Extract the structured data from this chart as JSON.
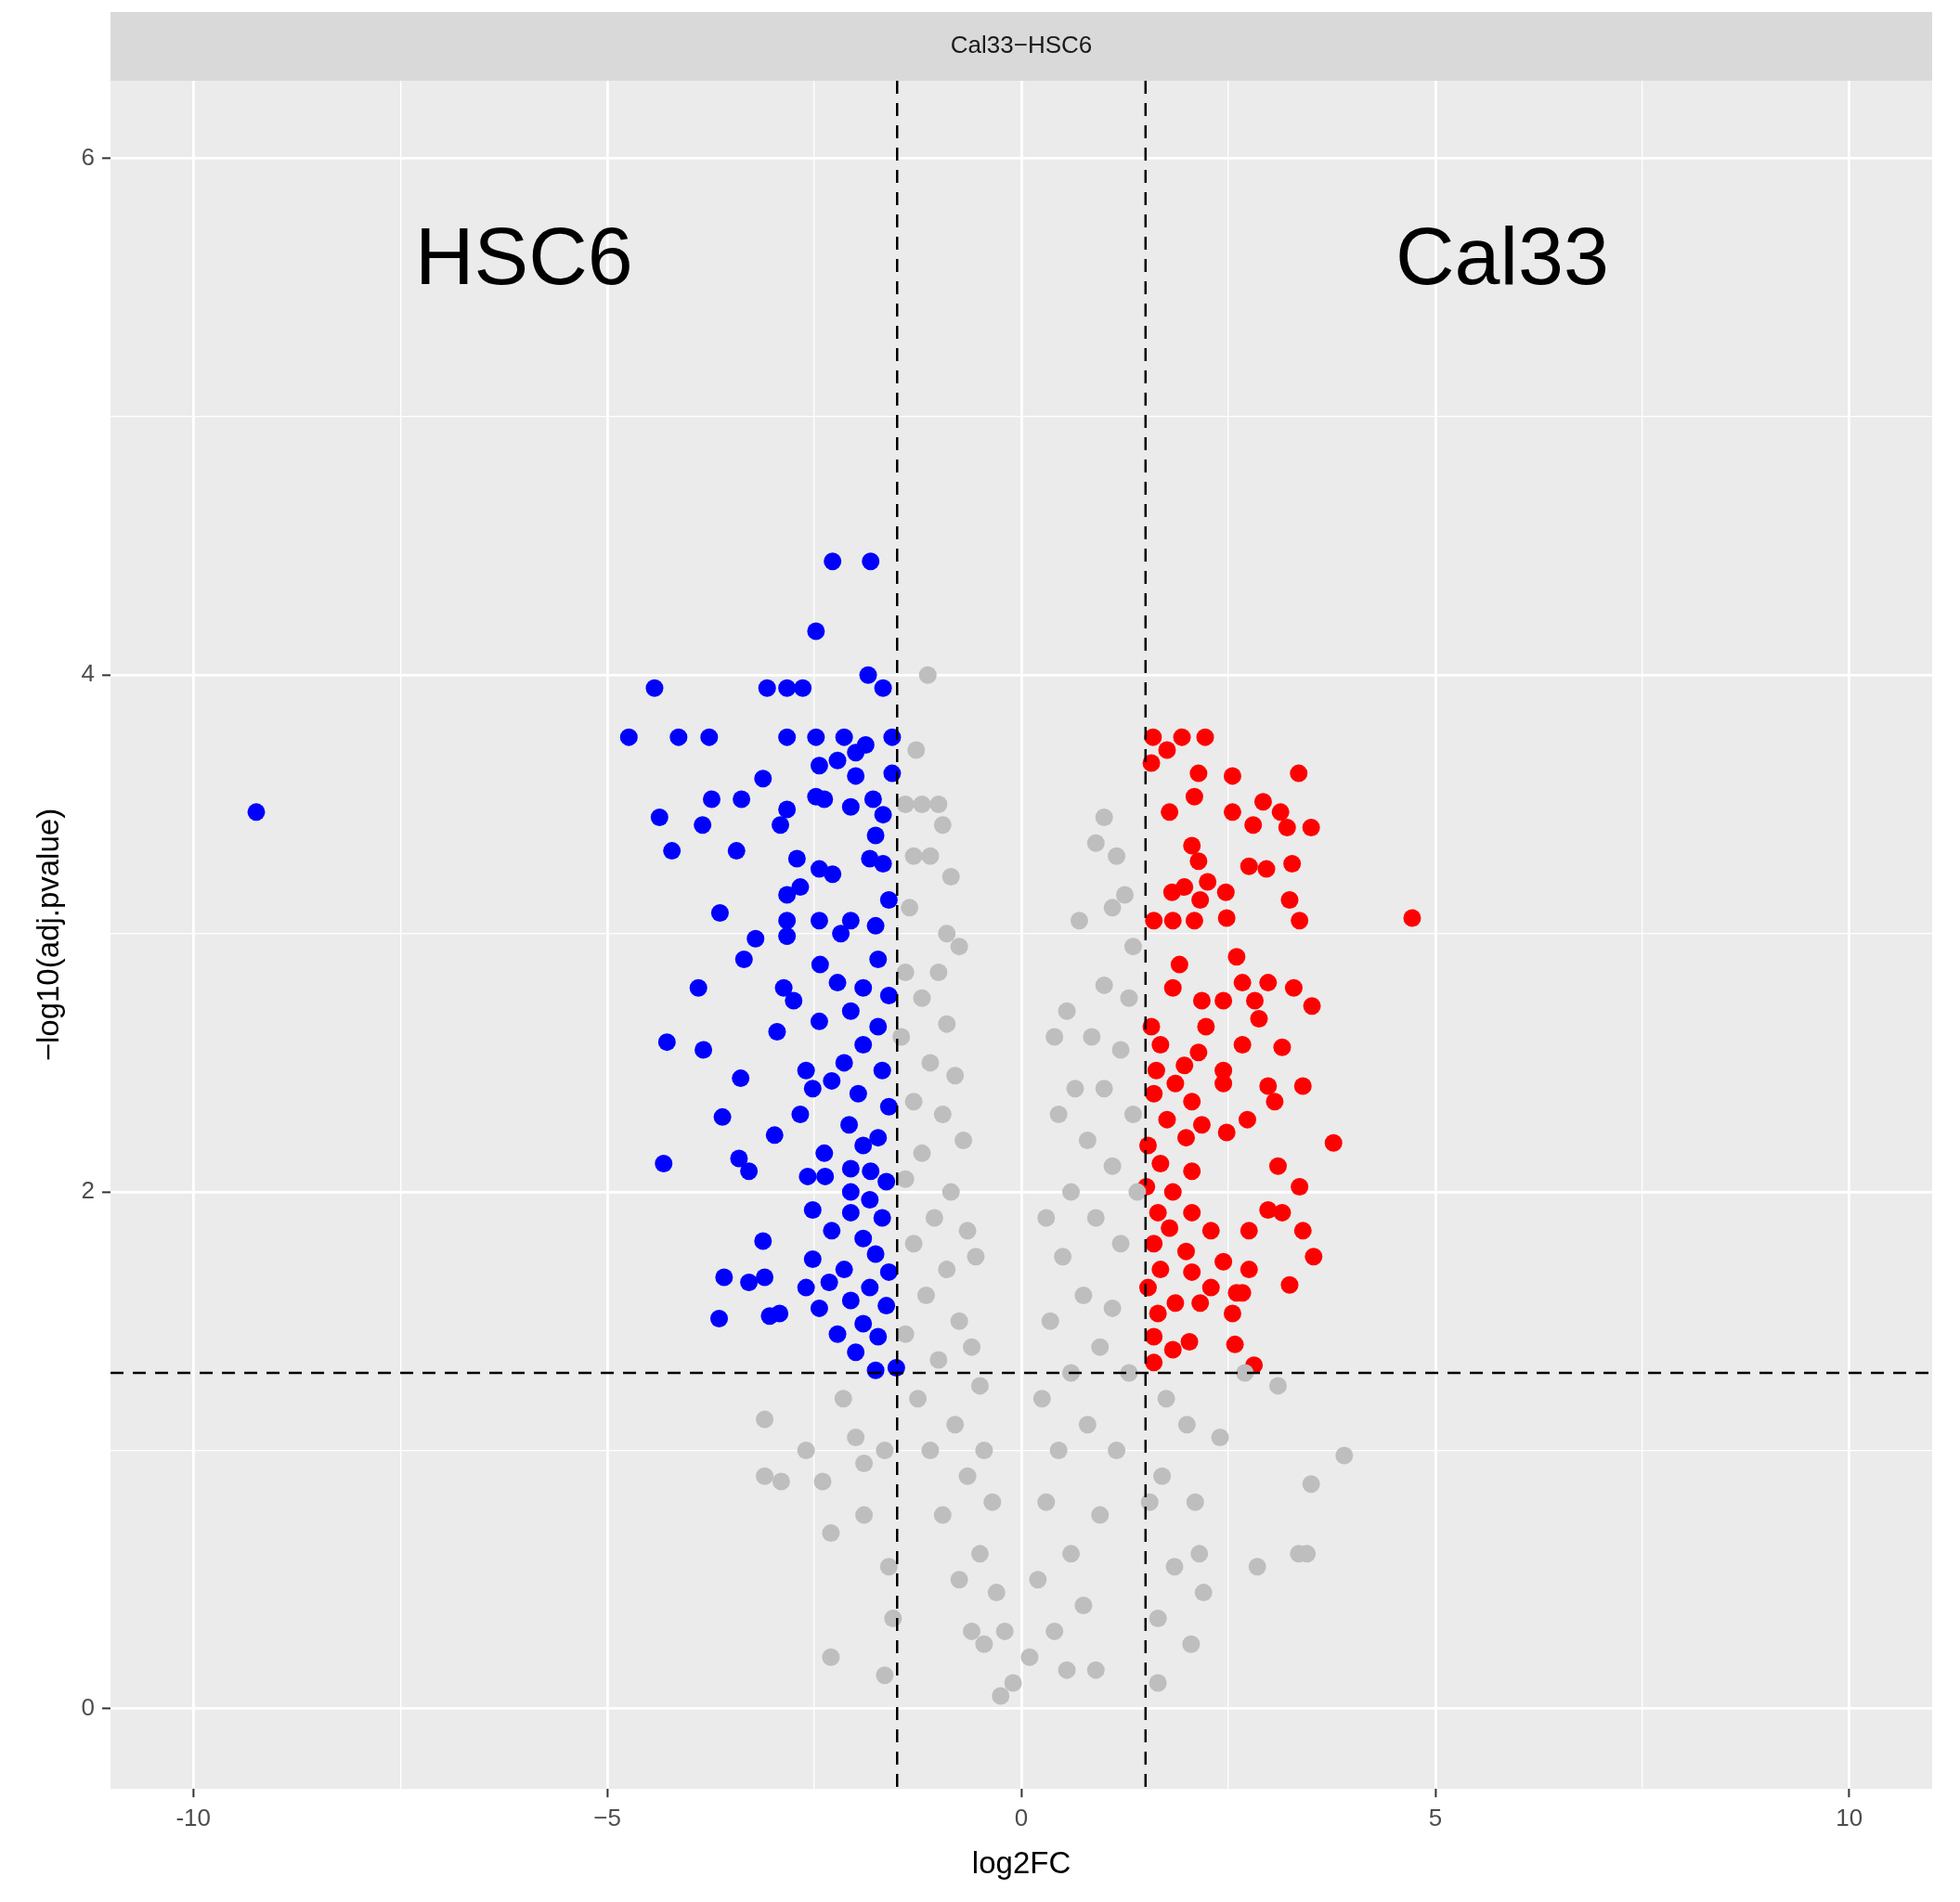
{
  "chart_data": {
    "type": "scatter",
    "title": "Cal33−HSC6",
    "xlabel": "log2FC",
    "ylabel": "−log10(adj.pvalue)",
    "xlim": [
      -11,
      11
    ],
    "ylim": [
      -0.31,
      6.3
    ],
    "xticks": [
      -10,
      {
        "value": -7.5,
        "label": null
      },
      {
        "value": -5,
        "label": "−5"
      },
      {
        "value": -2.5,
        "label": null
      },
      0,
      {
        "value": 2.5,
        "label": null
      },
      5,
      {
        "value": 7.5,
        "label": null
      },
      10
    ],
    "yticks": [
      0,
      {
        "value": 1,
        "label": null
      },
      2,
      {
        "value": 3,
        "label": null
      },
      4,
      {
        "value": 5,
        "label": null
      },
      6
    ],
    "grid": true,
    "legend": false,
    "marker": "circle",
    "ref_lines": [
      {
        "axis": "x",
        "value": -1.5,
        "line_style": "dashed",
        "color": "#000000"
      },
      {
        "axis": "x",
        "value": 1.5,
        "line_style": "dashed",
        "color": "#000000"
      },
      {
        "axis": "y",
        "value": 1.3,
        "line_style": "dashed",
        "color": "#000000"
      }
    ],
    "annotations": [
      "HSC6",
      "Cal33"
    ],
    "series": [
      {
        "color": "#bebebe",
        "x": [
          -1.13,
          -1.27,
          -1.4,
          -1.2,
          -1.0,
          -0.95,
          -1.3,
          -1.1,
          -0.85,
          -1.35,
          -0.9,
          -1.4,
          -1.0,
          -0.75,
          -1.2,
          -0.9,
          -1.45,
          -1.1,
          -0.8,
          -1.3,
          -0.95,
          -0.7,
          -1.2,
          -1.4,
          -0.85,
          -1.05,
          -0.65,
          -1.3,
          -0.9,
          -0.55,
          -1.15,
          -0.75,
          -1.4,
          -0.6,
          -1.0,
          -0.5,
          -1.25,
          -0.8,
          -0.45,
          -1.1,
          -0.65,
          -0.35,
          -0.95,
          -0.5,
          -0.3,
          -0.75,
          -0.2,
          -0.45,
          -0.1,
          -0.25,
          -0.6,
          -3.1,
          -3.1,
          -2.6,
          -2.9,
          -2.4,
          -2.3,
          -2.3,
          -1.65,
          -1.9,
          -1.6,
          -1.65,
          -2.0,
          -2.15,
          -1.55,
          -1.9,
          1.0,
          0.9,
          1.15,
          1.25,
          0.7,
          1.1,
          1.35,
          0.55,
          1.0,
          1.3,
          0.85,
          0.4,
          1.2,
          0.65,
          1.0,
          1.35,
          0.45,
          0.8,
          1.1,
          0.6,
          1.4,
          0.3,
          0.9,
          1.2,
          0.5,
          0.75,
          1.1,
          0.35,
          0.95,
          0.6,
          1.3,
          0.25,
          0.8,
          1.15,
          0.45,
          0.3,
          0.95,
          0.6,
          0.2,
          0.75,
          0.4,
          0.1,
          0.9,
          0.55,
          1.75,
          2.0,
          2.4,
          2.7,
          3.1,
          3.9,
          3.5,
          2.1,
          1.7,
          2.15,
          2.2,
          2.85,
          3.35,
          3.45,
          1.65,
          2.05,
          1.55,
          1.85,
          1.65
        ],
        "values": [
          4.0,
          3.71,
          3.5,
          3.5,
          3.5,
          3.42,
          3.3,
          3.3,
          3.22,
          3.1,
          3.0,
          2.85,
          2.85,
          2.95,
          2.75,
          2.65,
          2.6,
          2.5,
          2.45,
          2.35,
          2.3,
          2.2,
          2.15,
          2.05,
          2.0,
          1.9,
          1.85,
          1.8,
          1.7,
          1.75,
          1.6,
          1.5,
          1.45,
          1.4,
          1.35,
          1.25,
          1.2,
          1.1,
          1.0,
          1.0,
          0.9,
          0.8,
          0.75,
          0.6,
          0.45,
          0.5,
          0.3,
          0.25,
          0.1,
          0.05,
          0.3,
          1.12,
          0.9,
          1.0,
          0.88,
          0.88,
          0.68,
          0.2,
          1.0,
          0.75,
          0.55,
          0.13,
          1.05,
          1.2,
          0.35,
          0.95,
          3.45,
          3.35,
          3.3,
          3.15,
          3.05,
          3.1,
          2.95,
          2.7,
          2.8,
          2.75,
          2.6,
          2.6,
          2.55,
          2.4,
          2.4,
          2.3,
          2.3,
          2.2,
          2.1,
          2.0,
          2.0,
          1.9,
          1.9,
          1.8,
          1.75,
          1.6,
          1.55,
          1.5,
          1.4,
          1.3,
          1.3,
          1.2,
          1.1,
          1.0,
          1.0,
          0.8,
          0.75,
          0.6,
          0.5,
          0.4,
          0.3,
          0.2,
          0.15,
          0.15,
          1.2,
          1.1,
          1.05,
          1.3,
          1.25,
          0.98,
          0.87,
          0.8,
          0.9,
          0.6,
          0.45,
          0.55,
          0.6,
          0.6,
          0.35,
          0.25,
          0.8,
          0.55,
          0.1
        ]
      },
      {
        "color": "#0000ff",
        "x": [
          -9.24,
          -4.74,
          -4.43,
          -4.14,
          -3.77,
          -4.37,
          -4.22,
          -3.85,
          -3.74,
          -3.44,
          -3.38,
          -3.64,
          -3.9,
          -4.28,
          -3.84,
          -3.39,
          -3.61,
          -3.35,
          -3.21,
          -2.98,
          -4.32,
          -3.41,
          -3.29,
          -3.12,
          -3.59,
          -3.29,
          -3.1,
          -3.65,
          -3.04,
          -2.92,
          -3.07,
          -2.83,
          -2.64,
          -3.12,
          -2.83,
          -2.83,
          -2.91,
          -2.71,
          -2.83,
          -2.67,
          -2.83,
          -2.83,
          -2.87,
          -2.75,
          -2.95,
          -2.6,
          -2.52,
          -2.67,
          -2.48,
          -2.28,
          -1.82,
          -1.85,
          -1.67,
          -2.48,
          -2.14,
          -2.0,
          -1.88,
          -1.56,
          -2.44,
          -2.22,
          -2.0,
          -1.56,
          -2.48,
          -2.38,
          -2.06,
          -1.79,
          -1.67,
          -1.76,
          -1.83,
          -1.67,
          -2.44,
          -2.28,
          -1.6,
          -2.44,
          -2.06,
          -2.18,
          -1.76,
          -2.43,
          -1.73,
          -2.22,
          -1.91,
          -1.6,
          -2.44,
          -2.06,
          -1.73,
          -1.91,
          -2.14,
          -1.68,
          -2.29,
          -1.97,
          -1.6,
          -2.08,
          -1.91,
          -1.73,
          -2.38,
          -2.06,
          -1.82,
          -2.58,
          -2.37,
          -1.63,
          -2.06,
          -1.83,
          -2.52,
          -2.06,
          -1.68,
          -2.29,
          -1.91,
          -1.76,
          -2.52,
          -2.14,
          -1.6,
          -2.6,
          -2.32,
          -1.83,
          -2.44,
          -2.06,
          -1.63,
          -1.91,
          -2.22,
          -1.73,
          -2.0,
          -1.76,
          -1.51
        ],
        "values": [
          3.47,
          3.76,
          3.95,
          3.76,
          3.76,
          3.45,
          3.32,
          3.42,
          3.52,
          3.32,
          3.52,
          3.08,
          2.79,
          2.58,
          2.55,
          2.44,
          2.29,
          2.9,
          2.98,
          2.22,
          2.11,
          2.13,
          2.08,
          1.81,
          1.67,
          1.65,
          1.67,
          1.51,
          1.52,
          1.53,
          3.95,
          3.95,
          3.95,
          3.6,
          3.76,
          3.48,
          3.42,
          3.29,
          3.15,
          3.18,
          3.05,
          2.99,
          2.79,
          2.74,
          2.62,
          2.47,
          2.4,
          2.3,
          4.17,
          4.44,
          4.44,
          4.0,
          3.95,
          3.76,
          3.76,
          3.7,
          3.73,
          3.76,
          3.65,
          3.67,
          3.61,
          3.62,
          3.53,
          3.52,
          3.49,
          3.52,
          3.46,
          3.38,
          3.29,
          3.27,
          3.25,
          3.23,
          3.13,
          3.05,
          3.05,
          3.0,
          3.03,
          2.88,
          2.9,
          2.81,
          2.79,
          2.76,
          2.66,
          2.7,
          2.64,
          2.57,
          2.5,
          2.47,
          2.43,
          2.38,
          2.33,
          2.26,
          2.18,
          2.21,
          2.15,
          2.09,
          2.08,
          2.06,
          2.06,
          2.04,
          2.0,
          1.97,
          1.93,
          1.92,
          1.9,
          1.85,
          1.82,
          1.76,
          1.74,
          1.7,
          1.69,
          1.63,
          1.65,
          1.63,
          1.55,
          1.58,
          1.56,
          1.49,
          1.45,
          1.44,
          1.38,
          1.31,
          1.32
        ]
      },
      {
        "color": "#ff0000",
        "x": [
          1.59,
          1.94,
          2.22,
          1.76,
          1.57,
          2.14,
          2.55,
          3.35,
          2.09,
          1.79,
          2.55,
          2.92,
          3.13,
          2.8,
          3.21,
          3.5,
          2.06,
          2.14,
          2.75,
          2.96,
          3.27,
          4.72,
          1.82,
          1.97,
          2.25,
          2.47,
          2.16,
          1.6,
          1.83,
          2.09,
          2.48,
          3.24,
          3.36,
          1.91,
          2.6,
          2.67,
          2.98,
          3.29,
          1.83,
          2.18,
          2.44,
          2.82,
          3.51,
          2.87,
          1.57,
          2.23,
          3.15,
          1.68,
          2.14,
          2.67,
          1.97,
          2.44,
          1.63,
          1.86,
          2.44,
          2.98,
          3.4,
          1.6,
          2.06,
          3.06,
          2.73,
          1.76,
          2.18,
          2.48,
          3.77,
          1.53,
          1.99,
          1.68,
          2.06,
          3.1,
          1.51,
          1.83,
          3.36,
          1.65,
          2.06,
          2.98,
          3.15,
          1.79,
          2.29,
          2.75,
          3.4,
          1.6,
          1.99,
          3.53,
          2.44,
          2.75,
          1.68,
          2.06,
          1.53,
          2.29,
          3.24,
          2.6,
          2.67,
          1.86,
          2.16,
          1.65,
          2.55,
          1.6,
          2.03,
          2.58,
          1.83,
          1.6,
          2.81
        ],
        "values": [
          3.76,
          3.76,
          3.76,
          3.71,
          3.66,
          3.62,
          3.61,
          3.62,
          3.53,
          3.47,
          3.47,
          3.51,
          3.47,
          3.42,
          3.41,
          3.41,
          3.34,
          3.28,
          3.26,
          3.25,
          3.27,
          3.06,
          3.16,
          3.18,
          3.2,
          3.16,
          3.13,
          3.05,
          3.05,
          3.05,
          3.06,
          3.13,
          3.05,
          2.88,
          2.91,
          2.81,
          2.81,
          2.79,
          2.79,
          2.74,
          2.74,
          2.74,
          2.72,
          2.67,
          2.64,
          2.64,
          2.56,
          2.57,
          2.54,
          2.57,
          2.49,
          2.47,
          2.47,
          2.42,
          2.42,
          2.41,
          2.41,
          2.38,
          2.35,
          2.35,
          2.28,
          2.28,
          2.26,
          2.23,
          2.19,
          2.18,
          2.21,
          2.11,
          2.08,
          2.1,
          2.02,
          2.0,
          2.02,
          1.92,
          1.92,
          1.93,
          1.92,
          1.86,
          1.85,
          1.85,
          1.85,
          1.8,
          1.77,
          1.75,
          1.73,
          1.7,
          1.7,
          1.69,
          1.63,
          1.63,
          1.64,
          1.61,
          1.61,
          1.57,
          1.57,
          1.53,
          1.53,
          1.44,
          1.42,
          1.41,
          1.39,
          1.34,
          1.33
        ]
      }
    ]
  }
}
